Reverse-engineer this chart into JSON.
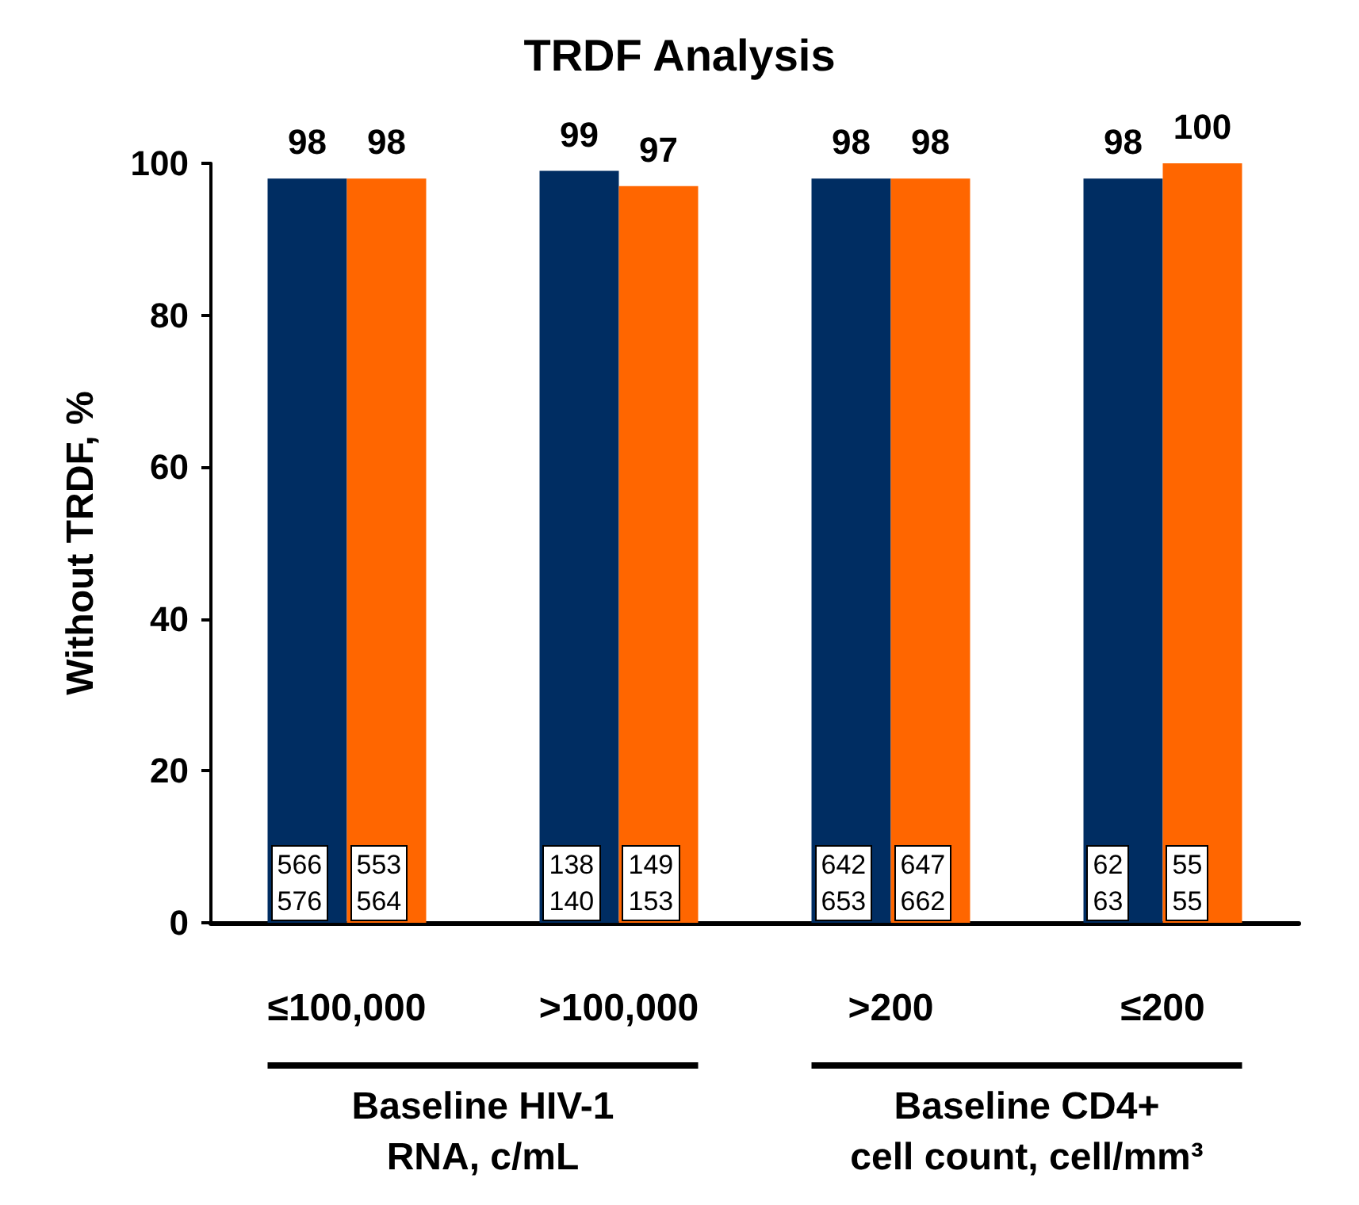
{
  "chart_data": {
    "type": "bar",
    "title": "TRDF Analysis",
    "ylabel": "Without TRDF, %",
    "categories": [
      "≤100,000",
      ">100,000",
      ">200",
      "≤200"
    ],
    "series": [
      {
        "color": "#002d62",
        "values": [
          98,
          99,
          98,
          98
        ]
      },
      {
        "color": "#ff6600",
        "values": [
          98,
          97,
          98,
          100
        ]
      }
    ],
    "ylim": [
      0,
      100
    ],
    "yticks": [
      0,
      20,
      40,
      60,
      80,
      100
    ],
    "grid": false,
    "data_labels": true,
    "annotations": [
      {
        "text": "566\n576",
        "x": "≤100,000"
      },
      {
        "text": "553\n564",
        "x": "≤100,000"
      },
      {
        "text": "138\n140",
        "x": ">100,000"
      },
      {
        "text": "149\n153",
        "x": ">100,000"
      },
      {
        "text": "642\n653",
        "x": ">200"
      },
      {
        "text": "647\n662",
        "x": ">200"
      },
      {
        "text": "62\n63",
        "x": "≤200"
      },
      {
        "text": "55\n55",
        "x": "≤200"
      },
      "Baseline HIV-1\nRNA, c/mL",
      "Baseline CD4+\ncell count, cell/mm³"
    ]
  }
}
